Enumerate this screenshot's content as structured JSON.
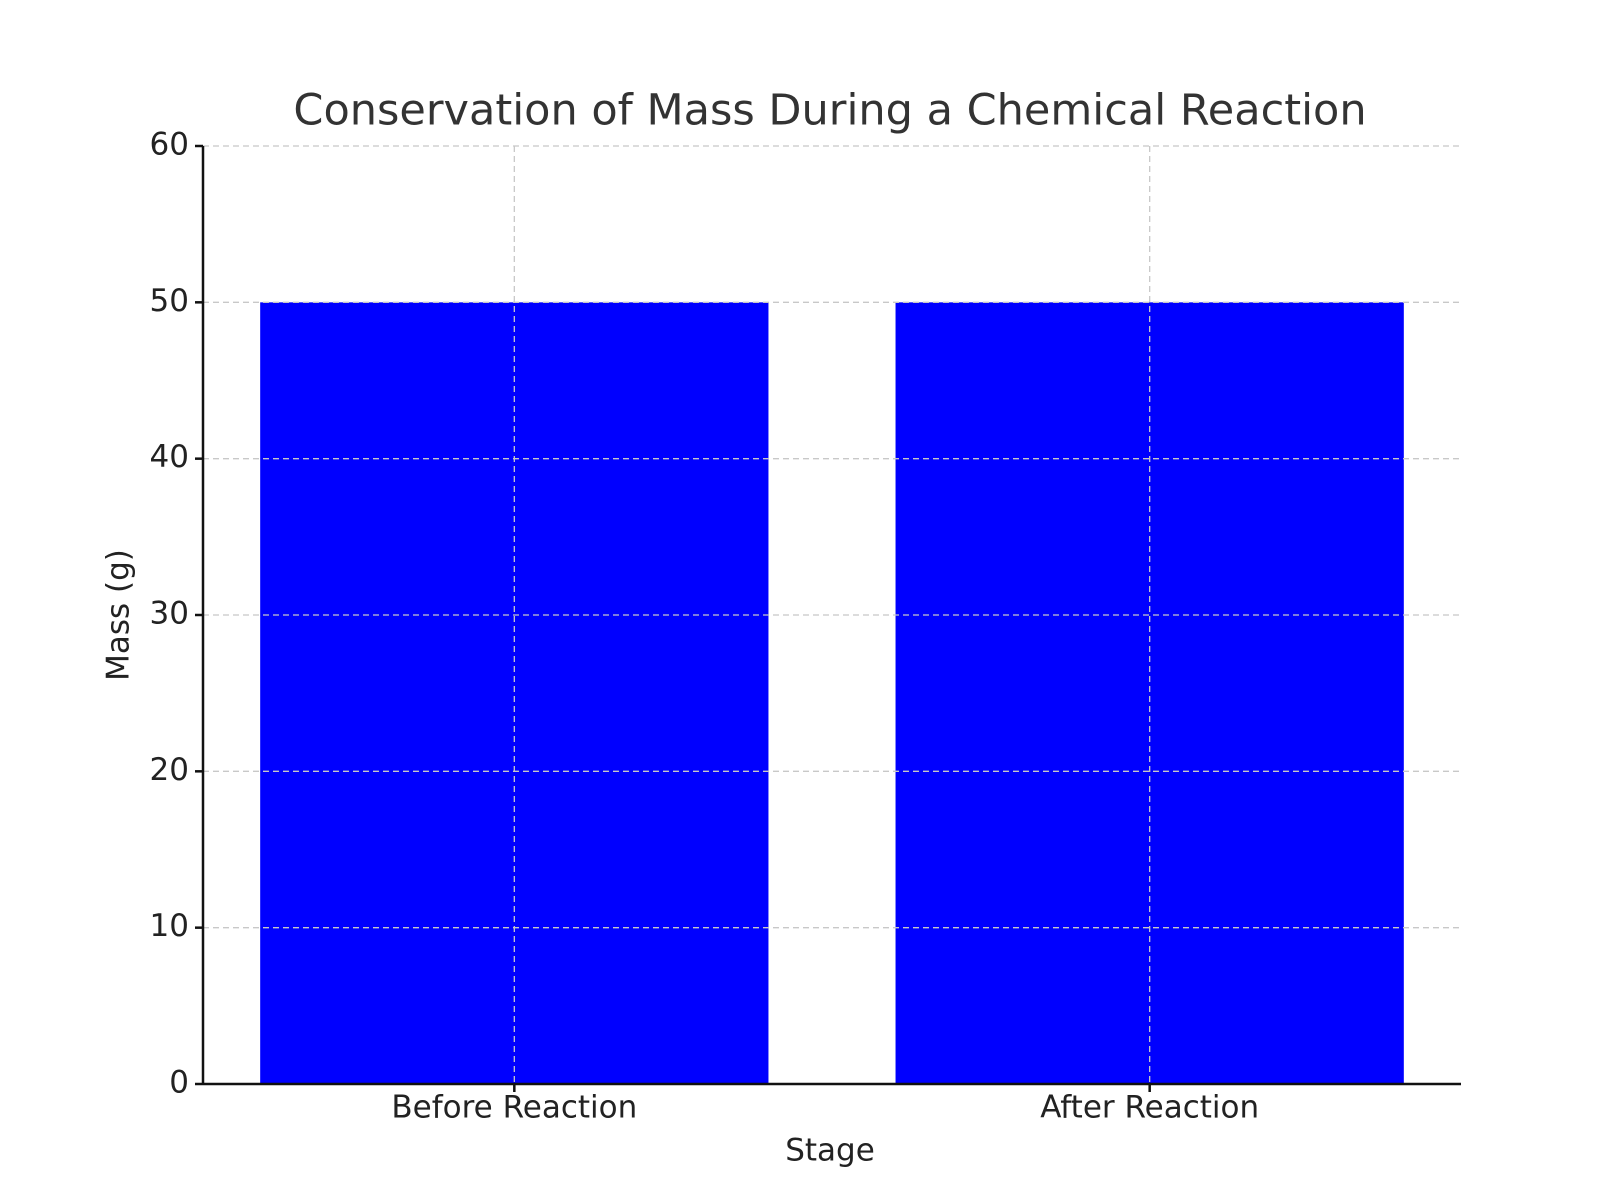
{
  "chart_data": {
    "type": "bar",
    "title": "Conservation of Mass During a Chemical Reaction",
    "x_label": "Stage",
    "y_label": "Mass (g)",
    "categories": [
      "Before Reaction",
      "After Reaction"
    ],
    "values": [
      50,
      50
    ],
    "color": "#0000ff",
    "ylim": [
      0,
      60
    ],
    "yticks": [
      0,
      10,
      20,
      30,
      40,
      50,
      60
    ],
    "grid": true
  }
}
